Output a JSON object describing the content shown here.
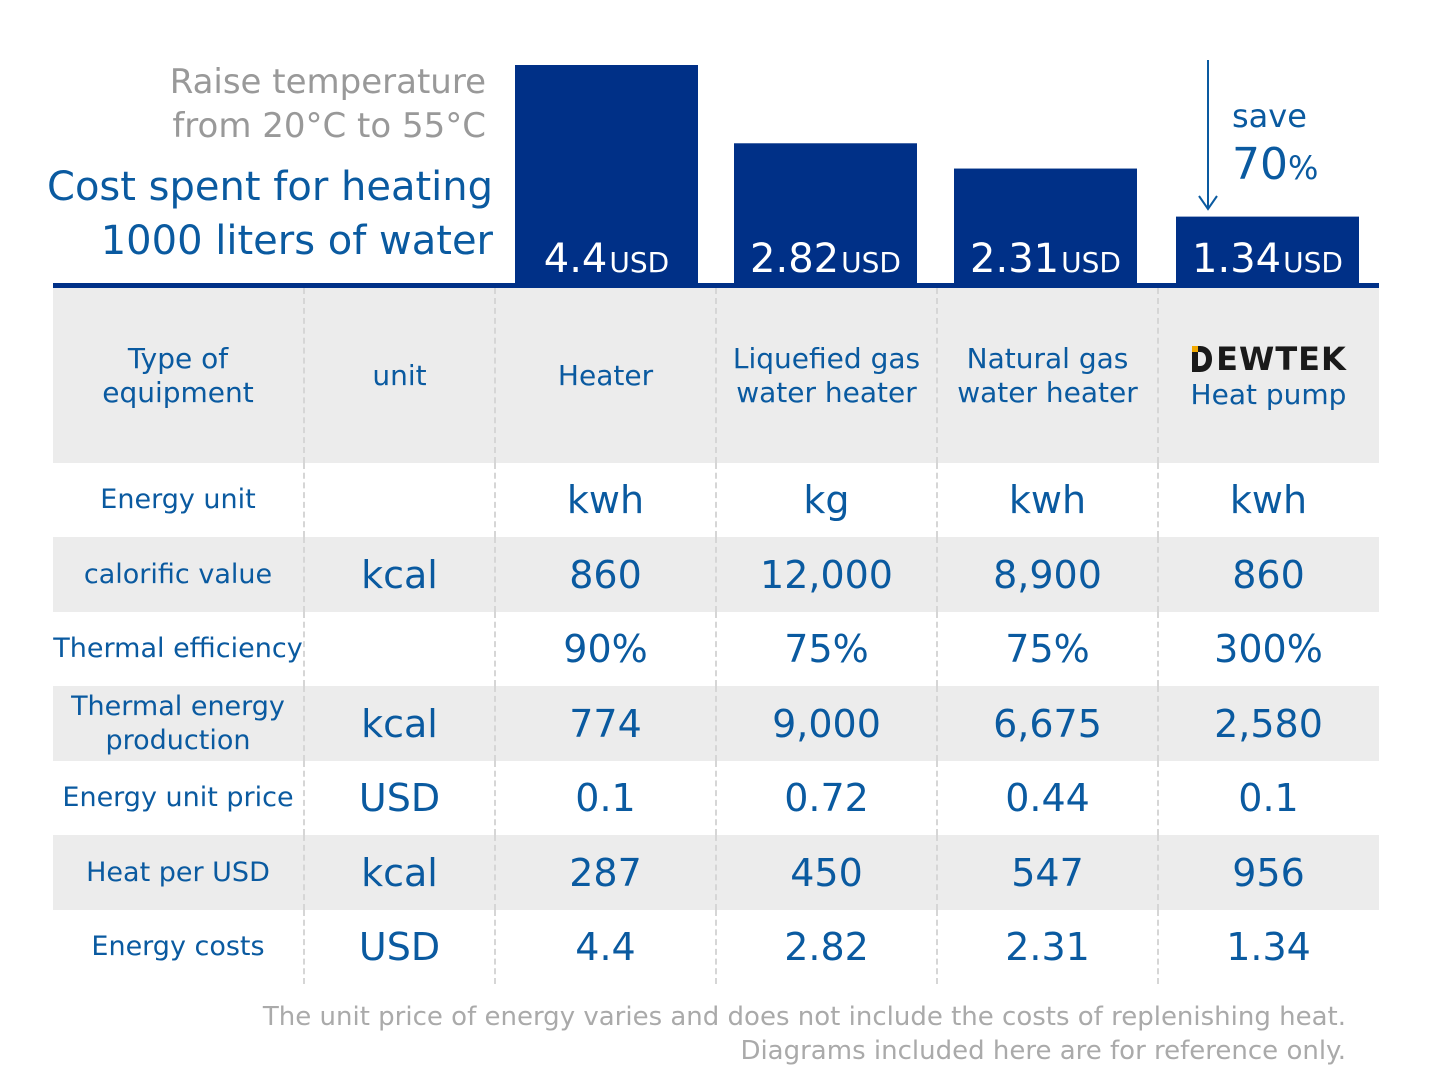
{
  "heading": {
    "line1": "Raise temperature",
    "line2": "from 20°C to 55°C",
    "title1": "Cost spent for heating",
    "title2": "1000 liters of water"
  },
  "chart_data": {
    "type": "bar",
    "categories": [
      "Heater",
      "Liquefied gas water heater",
      "Natural gas water heater",
      "Heat pump"
    ],
    "values": [
      4.4,
      2.82,
      2.31,
      1.34
    ],
    "labels": [
      "4.4",
      "2.82",
      "2.31",
      "1.34"
    ],
    "unit": "USD",
    "bar_color": "#003087",
    "ylim": [
      0,
      4.4
    ]
  },
  "savings": {
    "word": "save",
    "number": "70",
    "sign": "%"
  },
  "brand": {
    "name": "EWTEK",
    "logo_icon": "dewtek-d-logo-icon",
    "logo_accent": "#f2a900"
  },
  "table": {
    "header": [
      "Type of equipment",
      "unit",
      "Heater",
      "Liquefied gas water heater",
      "Natural gas water heater",
      "Heat pump"
    ],
    "rows": [
      {
        "label": "Energy unit",
        "unit": "",
        "values": [
          "kwh",
          "kg",
          "kwh",
          "kwh"
        ]
      },
      {
        "label": "calorific value",
        "unit": "kcal",
        "values": [
          "860",
          "12,000",
          "8,900",
          "860"
        ]
      },
      {
        "label": "Thermal efficiency",
        "unit": "",
        "values": [
          "90%",
          "75%",
          "75%",
          "300%"
        ]
      },
      {
        "label": "Thermal energy production",
        "unit": "kcal",
        "values": [
          "774",
          "9,000",
          "6,675",
          "2,580"
        ]
      },
      {
        "label": "Energy unit price",
        "unit": "USD",
        "values": [
          "0.1",
          "0.72",
          "0.44",
          "0.1"
        ]
      },
      {
        "label": "Heat per USD",
        "unit": "kcal",
        "values": [
          "287",
          "450",
          "547",
          "956"
        ]
      },
      {
        "label": "Energy costs",
        "unit": "USD",
        "values": [
          "4.4",
          "2.82",
          "2.31",
          "1.34"
        ]
      }
    ]
  },
  "notes": {
    "line1": "The unit price of energy varies and does not include the costs of replenishing heat.",
    "line2": "Diagrams included here are for reference only."
  },
  "colors": {
    "accent_blue": "#0a5aa0",
    "dark_blue": "#003087",
    "row_shade": "#ececec"
  }
}
